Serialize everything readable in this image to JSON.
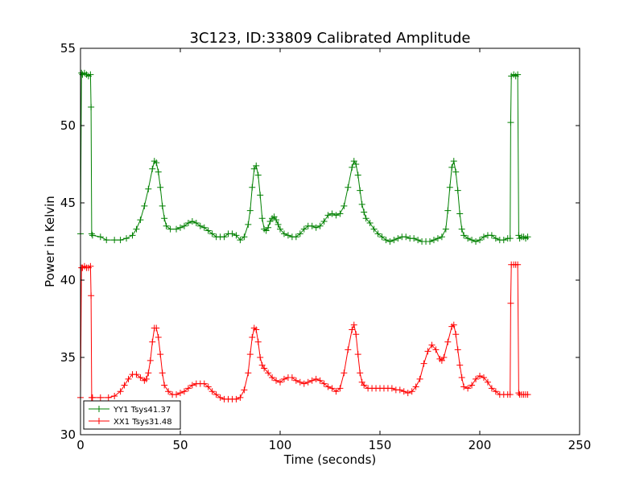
{
  "chart_data": {
    "type": "line",
    "title": "3C123, ID:33809 Calibrated Amplitude",
    "xlabel": "Time (seconds)",
    "ylabel": "Power in Kelvin",
    "xlim": [
      0,
      250
    ],
    "ylim": [
      30,
      55
    ],
    "xticks": [
      0,
      50,
      100,
      150,
      200,
      250
    ],
    "yticks": [
      30,
      35,
      40,
      45,
      50,
      55
    ],
    "grid": false,
    "legend_position": "lower-left",
    "marker": "plus",
    "series": [
      {
        "name": "YY1 Tsys41.37",
        "color": "#008000",
        "points": [
          [
            0,
            43.0
          ],
          [
            0.5,
            53.4
          ],
          [
            1,
            53.3
          ],
          [
            2,
            53.4
          ],
          [
            3,
            53.3
          ],
          [
            4,
            53.2
          ],
          [
            5,
            53.3
          ],
          [
            5.3,
            51.2
          ],
          [
            5.6,
            43.0
          ],
          [
            6,
            42.9
          ],
          [
            10,
            42.8
          ],
          [
            13,
            42.6
          ],
          [
            17,
            42.6
          ],
          [
            20,
            42.6
          ],
          [
            23,
            42.7
          ],
          [
            26,
            42.9
          ],
          [
            28,
            43.3
          ],
          [
            30,
            43.9
          ],
          [
            32,
            44.8
          ],
          [
            34,
            45.9
          ],
          [
            36,
            47.2
          ],
          [
            37,
            47.7
          ],
          [
            38,
            47.6
          ],
          [
            39,
            47.0
          ],
          [
            40,
            46.0
          ],
          [
            41,
            44.8
          ],
          [
            42,
            44.0
          ],
          [
            43,
            43.5
          ],
          [
            45,
            43.3
          ],
          [
            48,
            43.3
          ],
          [
            50,
            43.4
          ],
          [
            52,
            43.5
          ],
          [
            54,
            43.7
          ],
          [
            56,
            43.8
          ],
          [
            58,
            43.7
          ],
          [
            60,
            43.5
          ],
          [
            62,
            43.4
          ],
          [
            64,
            43.2
          ],
          [
            66,
            43.0
          ],
          [
            68,
            42.8
          ],
          [
            70,
            42.8
          ],
          [
            72,
            42.8
          ],
          [
            74,
            43.0
          ],
          [
            76,
            43.0
          ],
          [
            78,
            42.9
          ],
          [
            80,
            42.6
          ],
          [
            82,
            42.8
          ],
          [
            84,
            43.6
          ],
          [
            85,
            44.5
          ],
          [
            86,
            46.0
          ],
          [
            87,
            47.2
          ],
          [
            88,
            47.4
          ],
          [
            89,
            46.8
          ],
          [
            90,
            45.5
          ],
          [
            91,
            44.0
          ],
          [
            92,
            43.3
          ],
          [
            93,
            43.2
          ],
          [
            94,
            43.4
          ],
          [
            95,
            43.8
          ],
          [
            96,
            44.0
          ],
          [
            97,
            44.1
          ],
          [
            98,
            43.9
          ],
          [
            99,
            43.6
          ],
          [
            100,
            43.3
          ],
          [
            102,
            43.0
          ],
          [
            104,
            42.9
          ],
          [
            106,
            42.8
          ],
          [
            108,
            42.8
          ],
          [
            110,
            43.0
          ],
          [
            112,
            43.3
          ],
          [
            114,
            43.5
          ],
          [
            116,
            43.5
          ],
          [
            118,
            43.4
          ],
          [
            120,
            43.5
          ],
          [
            122,
            43.8
          ],
          [
            124,
            44.2
          ],
          [
            126,
            44.3
          ],
          [
            128,
            44.2
          ],
          [
            130,
            44.3
          ],
          [
            132,
            44.8
          ],
          [
            134,
            46.0
          ],
          [
            136,
            47.3
          ],
          [
            137,
            47.7
          ],
          [
            138,
            47.5
          ],
          [
            139,
            46.8
          ],
          [
            140,
            45.8
          ],
          [
            141,
            44.9
          ],
          [
            142,
            44.4
          ],
          [
            143,
            44.0
          ],
          [
            145,
            43.7
          ],
          [
            147,
            43.3
          ],
          [
            149,
            43.0
          ],
          [
            151,
            42.8
          ],
          [
            153,
            42.6
          ],
          [
            155,
            42.5
          ],
          [
            157,
            42.6
          ],
          [
            159,
            42.7
          ],
          [
            161,
            42.8
          ],
          [
            163,
            42.8
          ],
          [
            165,
            42.7
          ],
          [
            167,
            42.7
          ],
          [
            169,
            42.6
          ],
          [
            171,
            42.5
          ],
          [
            173,
            42.5
          ],
          [
            175,
            42.5
          ],
          [
            177,
            42.6
          ],
          [
            179,
            42.7
          ],
          [
            181,
            42.8
          ],
          [
            183,
            43.3
          ],
          [
            184,
            44.5
          ],
          [
            185,
            46.0
          ],
          [
            186,
            47.3
          ],
          [
            187,
            47.7
          ],
          [
            188,
            47.0
          ],
          [
            189,
            45.8
          ],
          [
            190,
            44.3
          ],
          [
            191,
            43.3
          ],
          [
            192,
            42.9
          ],
          [
            194,
            42.7
          ],
          [
            196,
            42.6
          ],
          [
            198,
            42.5
          ],
          [
            200,
            42.6
          ],
          [
            202,
            42.8
          ],
          [
            204,
            42.9
          ],
          [
            206,
            42.9
          ],
          [
            208,
            42.7
          ],
          [
            210,
            42.6
          ],
          [
            212,
            42.6
          ],
          [
            214,
            42.7
          ],
          [
            215.2,
            42.7
          ],
          [
            215.5,
            50.2
          ],
          [
            215.8,
            53.2
          ],
          [
            217,
            53.3
          ],
          [
            218,
            53.2
          ],
          [
            219,
            53.3
          ],
          [
            219.5,
            42.9
          ],
          [
            220,
            42.7
          ],
          [
            221,
            42.8
          ],
          [
            222,
            42.8
          ],
          [
            223,
            42.7
          ],
          [
            224,
            42.8
          ]
        ]
      },
      {
        "name": "XX1 Tsys31.48",
        "color": "#ff0000",
        "points": [
          [
            0,
            32.4
          ],
          [
            0.5,
            40.8
          ],
          [
            1,
            40.8
          ],
          [
            2,
            40.9
          ],
          [
            3,
            40.8
          ],
          [
            4,
            40.8
          ],
          [
            5,
            40.9
          ],
          [
            5.3,
            39.0
          ],
          [
            5.6,
            32.4
          ],
          [
            6,
            32.4
          ],
          [
            10,
            32.4
          ],
          [
            14,
            32.4
          ],
          [
            17,
            32.5
          ],
          [
            20,
            32.8
          ],
          [
            22,
            33.2
          ],
          [
            24,
            33.6
          ],
          [
            26,
            33.9
          ],
          [
            28,
            33.9
          ],
          [
            30,
            33.7
          ],
          [
            32,
            33.5
          ],
          [
            33,
            33.6
          ],
          [
            34,
            34.0
          ],
          [
            35,
            34.8
          ],
          [
            36,
            36.0
          ],
          [
            37,
            36.9
          ],
          [
            38,
            36.9
          ],
          [
            39,
            36.3
          ],
          [
            40,
            35.2
          ],
          [
            41,
            34.0
          ],
          [
            42,
            33.2
          ],
          [
            44,
            32.8
          ],
          [
            46,
            32.6
          ],
          [
            48,
            32.6
          ],
          [
            50,
            32.7
          ],
          [
            52,
            32.8
          ],
          [
            54,
            33.0
          ],
          [
            56,
            33.2
          ],
          [
            58,
            33.3
          ],
          [
            60,
            33.3
          ],
          [
            62,
            33.3
          ],
          [
            64,
            33.1
          ],
          [
            66,
            32.8
          ],
          [
            68,
            32.6
          ],
          [
            70,
            32.4
          ],
          [
            72,
            32.3
          ],
          [
            74,
            32.3
          ],
          [
            76,
            32.3
          ],
          [
            78,
            32.3
          ],
          [
            80,
            32.4
          ],
          [
            82,
            32.9
          ],
          [
            84,
            34.0
          ],
          [
            85,
            35.2
          ],
          [
            86,
            36.3
          ],
          [
            87,
            36.9
          ],
          [
            88,
            36.8
          ],
          [
            89,
            36.0
          ],
          [
            90,
            35.0
          ],
          [
            91,
            34.5
          ],
          [
            92,
            34.3
          ],
          [
            94,
            34.0
          ],
          [
            96,
            33.7
          ],
          [
            98,
            33.5
          ],
          [
            100,
            33.4
          ],
          [
            102,
            33.6
          ],
          [
            104,
            33.7
          ],
          [
            106,
            33.7
          ],
          [
            108,
            33.5
          ],
          [
            110,
            33.4
          ],
          [
            112,
            33.3
          ],
          [
            114,
            33.4
          ],
          [
            116,
            33.5
          ],
          [
            118,
            33.6
          ],
          [
            120,
            33.5
          ],
          [
            122,
            33.3
          ],
          [
            124,
            33.1
          ],
          [
            126,
            33.0
          ],
          [
            128,
            32.8
          ],
          [
            130,
            33.0
          ],
          [
            132,
            34.0
          ],
          [
            134,
            35.5
          ],
          [
            136,
            36.8
          ],
          [
            137,
            37.1
          ],
          [
            138,
            36.5
          ],
          [
            139,
            35.2
          ],
          [
            140,
            34.0
          ],
          [
            141,
            33.4
          ],
          [
            142,
            33.2
          ],
          [
            144,
            33.0
          ],
          [
            146,
            33.0
          ],
          [
            148,
            33.0
          ],
          [
            150,
            33.0
          ],
          [
            152,
            33.0
          ],
          [
            154,
            33.0
          ],
          [
            156,
            33.0
          ],
          [
            158,
            32.9
          ],
          [
            160,
            32.9
          ],
          [
            162,
            32.8
          ],
          [
            164,
            32.7
          ],
          [
            166,
            32.8
          ],
          [
            168,
            33.1
          ],
          [
            170,
            33.6
          ],
          [
            172,
            34.6
          ],
          [
            174,
            35.4
          ],
          [
            176,
            35.8
          ],
          [
            178,
            35.5
          ],
          [
            180,
            34.9
          ],
          [
            181,
            34.8
          ],
          [
            182,
            35.0
          ],
          [
            184,
            36.0
          ],
          [
            186,
            37.0
          ],
          [
            187,
            37.1
          ],
          [
            188,
            36.5
          ],
          [
            189,
            35.5
          ],
          [
            190,
            34.5
          ],
          [
            191,
            33.7
          ],
          [
            192,
            33.1
          ],
          [
            194,
            33.0
          ],
          [
            196,
            33.2
          ],
          [
            198,
            33.6
          ],
          [
            200,
            33.8
          ],
          [
            202,
            33.7
          ],
          [
            204,
            33.4
          ],
          [
            206,
            33.0
          ],
          [
            208,
            32.8
          ],
          [
            210,
            32.6
          ],
          [
            212,
            32.6
          ],
          [
            214,
            32.6
          ],
          [
            215.2,
            32.6
          ],
          [
            215.5,
            38.5
          ],
          [
            215.8,
            41.0
          ],
          [
            217,
            41.0
          ],
          [
            218,
            41.0
          ],
          [
            219,
            41.0
          ],
          [
            219.5,
            32.7
          ],
          [
            220,
            32.6
          ],
          [
            221,
            32.6
          ],
          [
            222,
            32.6
          ],
          [
            223,
            32.6
          ],
          [
            224,
            32.6
          ]
        ]
      }
    ]
  }
}
